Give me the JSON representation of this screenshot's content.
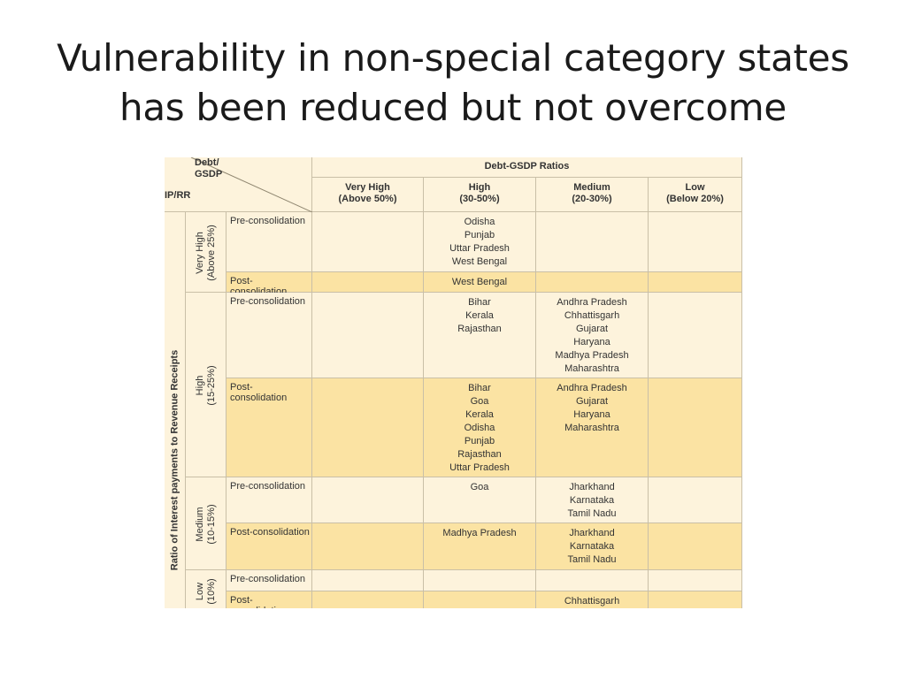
{
  "title": {
    "line1": "Vulnerability in non-special category states",
    "line2": "has been reduced but not overcome"
  },
  "table": {
    "corner_top": "Debt/\nGSDP",
    "corner_bottom": "IP/RR",
    "group_header": "Debt-GSDP Ratios",
    "columns": [
      {
        "label": "Very High",
        "range": "(Above 50%)"
      },
      {
        "label": "High",
        "range": "(30-50%)"
      },
      {
        "label": "Medium",
        "range": "(20-30%)"
      },
      {
        "label": "Low",
        "range": "(Below 20%)"
      }
    ],
    "row_axis_label": "Ratio of Interest payments to Revenue Receipts",
    "row_groups": [
      {
        "label": "Very High",
        "range": "(Above 25%)",
        "rows": [
          {
            "stage": "Pre-consolidation",
            "cells": [
              [],
              [
                "Odisha",
                "Punjab",
                "Uttar Pradesh",
                "West Bengal"
              ],
              [],
              []
            ]
          },
          {
            "stage": "Post- consolidation",
            "cells": [
              [],
              [
                "West Bengal"
              ],
              [],
              []
            ]
          }
        ]
      },
      {
        "label": "High",
        "range": "(15-25%)",
        "rows": [
          {
            "stage": "Pre-consolidation",
            "cells": [
              [],
              [
                "Bihar",
                "Kerala",
                "Rajasthan"
              ],
              [
                "Andhra Pradesh",
                "Chhattisgarh",
                "Gujarat",
                "Haryana",
                "Madhya Pradesh",
                "Maharashtra"
              ],
              []
            ]
          },
          {
            "stage": "Post- consolidation",
            "cells": [
              [],
              [
                "Bihar",
                "Goa",
                "Kerala",
                "Odisha",
                "Punjab",
                "Rajasthan",
                "Uttar Pradesh"
              ],
              [
                "Andhra Pradesh",
                "Gujarat",
                "Haryana",
                "Maharashtra"
              ],
              []
            ]
          }
        ]
      },
      {
        "label": "Medium",
        "range": "(10-15%)",
        "rows": [
          {
            "stage": "Pre-consolidation",
            "cells": [
              [],
              [
                "Goa"
              ],
              [
                "Jharkhand",
                "Karnataka",
                "Tamil Nadu"
              ],
              []
            ]
          },
          {
            "stage": "Post-consolidation",
            "cells": [
              [],
              [
                "Madhya Pradesh"
              ],
              [
                "Jharkhand",
                "Karnataka",
                "Tamil Nadu"
              ],
              []
            ]
          }
        ]
      },
      {
        "label": "Low",
        "range": "(10%)",
        "rows": [
          {
            "stage": "Pre-consolidation",
            "cells": [
              [],
              [],
              [],
              []
            ]
          },
          {
            "stage": "Post- consolidation",
            "cells": [
              [],
              [],
              [
                "Chhattisgarh"
              ],
              []
            ]
          }
        ]
      }
    ]
  }
}
